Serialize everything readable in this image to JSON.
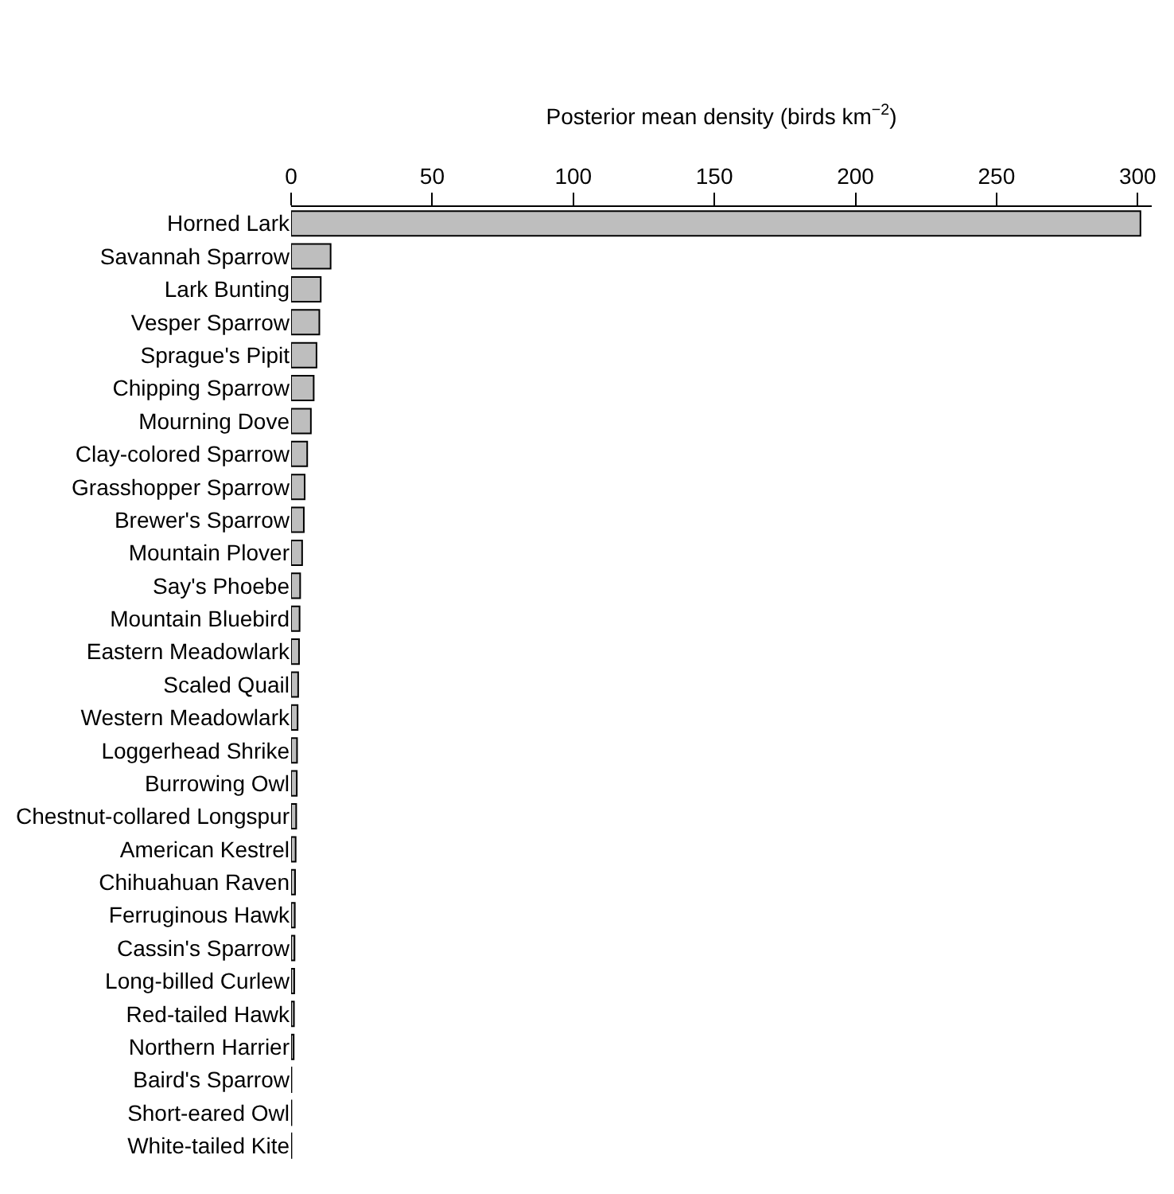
{
  "chart_data": {
    "type": "bar",
    "orientation": "horizontal",
    "xlabel": "Posterior mean density (birds km$^{−2}$)",
    "categories": [
      "Horned Lark",
      "Savannah Sparrow",
      "Lark Bunting",
      "Vesper Sparrow",
      "Sprague's Pipit",
      "Chipping Sparrow",
      "Mourning Dove",
      "Clay-colored Sparrow",
      "Grasshopper Sparrow",
      "Brewer's Sparrow",
      "Mountain Plover",
      "Say's Phoebe",
      "Mountain Bluebird",
      "Eastern Meadowlark",
      "Scaled Quail",
      "Western Meadowlark",
      "Loggerhead Shrike",
      "Burrowing Owl",
      "Chestnut-collared Longspur",
      "American Kestrel",
      "Chihuahuan Raven",
      "Ferruginous Hawk",
      "Cassin's Sparrow",
      "Long-billed Curlew",
      "Red-tailed Hawk",
      "Northern Harrier",
      "Baird's Sparrow",
      "Short-eared Owl",
      "White-tailed Kite"
    ],
    "values": [
      301,
      14,
      10.5,
      10,
      9,
      8,
      7,
      5.7,
      4.8,
      4.5,
      3.9,
      3.2,
      3,
      2.8,
      2.5,
      2.3,
      2.1,
      2,
      1.8,
      1.6,
      1.4,
      1.3,
      1.2,
      1.1,
      1,
      0.9,
      0.1,
      0.1,
      0.1
    ],
    "color": "#bebebe",
    "xlim": [
      0,
      305
    ],
    "xticks": [
      0,
      50,
      100,
      150,
      200,
      250,
      300
    ]
  }
}
